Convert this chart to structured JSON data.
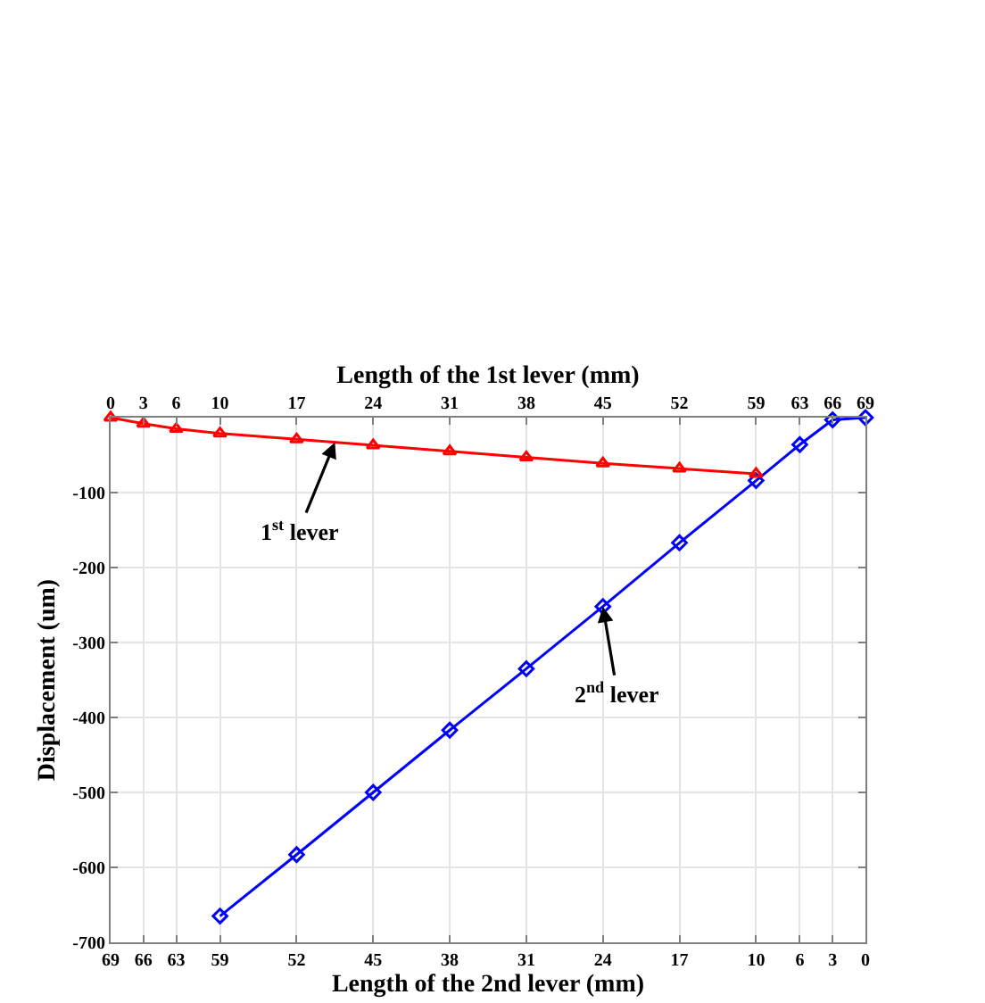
{
  "chart_data": {
    "type": "line",
    "xlabel": "Length of the 2nd lever (mm)",
    "x2label": "Length of the 1st lever (mm)",
    "ylabel": "Displacement (um)",
    "xlim": [
      69,
      0
    ],
    "xticks": [
      69,
      66,
      63,
      59,
      52,
      45,
      38,
      31,
      24,
      17,
      10,
      6,
      3,
      0
    ],
    "x2lim": [
      0,
      69
    ],
    "x2ticks": [
      0,
      3,
      6,
      10,
      17,
      24,
      31,
      38,
      45,
      52,
      59,
      63,
      66,
      69
    ],
    "ylim": [
      -700,
      0
    ],
    "yticks": [
      -100,
      -200,
      -300,
      -400,
      -500,
      -600,
      -700
    ],
    "grid": true,
    "legend": false,
    "line_style": "solid",
    "series": [
      {
        "name": "1$^{st}$ lever",
        "color": "#ff0000",
        "axis": "x2",
        "marker": "triangle",
        "x": [
          0,
          3,
          6,
          10,
          17,
          24,
          31,
          38,
          45,
          52,
          59
        ],
        "values": [
          0,
          -8,
          -15,
          -21,
          -29,
          -37,
          -45,
          -53,
          -61,
          -68,
          -75
        ]
      },
      {
        "name": "2$^{nd}$ lever",
        "color": "#0000ff",
        "marker": "diamond",
        "x": [
          59,
          52,
          45,
          38,
          31,
          24,
          17,
          10,
          6,
          3,
          0
        ],
        "values": [
          -665,
          -583,
          -500,
          -417,
          -335,
          -252,
          -167,
          -84,
          -36,
          -3,
          0
        ]
      }
    ]
  }
}
